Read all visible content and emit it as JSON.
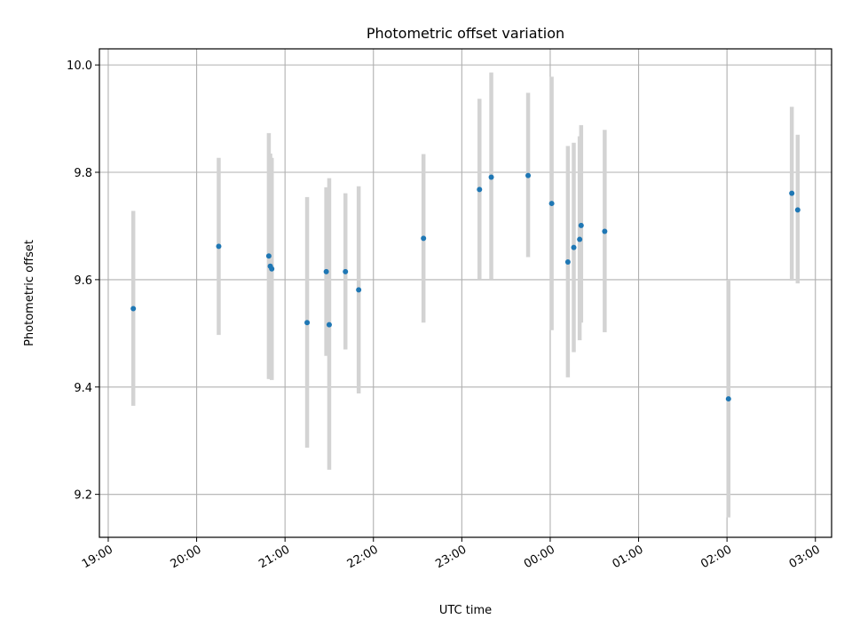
{
  "chart_data": {
    "type": "scatter",
    "title": "Photometric offset variation",
    "xlabel": "UTC time",
    "ylabel": "Photometric offset",
    "x_axis": "time",
    "xlim": [
      "2000-01-01T18:54",
      "2000-01-02T03:11"
    ],
    "ylim": [
      9.12,
      10.03
    ],
    "grid": true,
    "legend": "none",
    "colors": {
      "point": "#1f77b4",
      "errorbar": "#d3d3d3",
      "grid": "#b0b0b0"
    },
    "xticks": [
      "19:00",
      "20:00",
      "21:00",
      "22:00",
      "23:00",
      "00:00",
      "01:00",
      "02:00",
      "03:00"
    ],
    "yticks": [
      "9.2",
      "9.4",
      "9.6",
      "9.8",
      "10.0"
    ],
    "series": [
      {
        "points": [
          {
            "time": "19:17",
            "y": 9.546,
            "ylow": 9.365,
            "yhigh": 9.728
          },
          {
            "time": "20:15",
            "y": 9.662,
            "ylow": 9.497,
            "yhigh": 9.827
          },
          {
            "time": "20:49",
            "y": 9.644,
            "ylow": 9.415,
            "yhigh": 9.873
          },
          {
            "time": "20:50",
            "y": 9.625,
            "ylow": 9.415,
            "yhigh": 9.835
          },
          {
            "time": "20:51",
            "y": 9.62,
            "ylow": 9.413,
            "yhigh": 9.827
          },
          {
            "time": "21:15",
            "y": 9.52,
            "ylow": 9.287,
            "yhigh": 9.754
          },
          {
            "time": "21:28",
            "y": 9.615,
            "ylow": 9.458,
            "yhigh": 9.772
          },
          {
            "time": "21:30",
            "y": 9.516,
            "ylow": 9.246,
            "yhigh": 9.789
          },
          {
            "time": "21:41",
            "y": 9.615,
            "ylow": 9.47,
            "yhigh": 9.761
          },
          {
            "time": "21:50",
            "y": 9.581,
            "ylow": 9.388,
            "yhigh": 9.774
          },
          {
            "time": "22:34",
            "y": 9.677,
            "ylow": 9.52,
            "yhigh": 9.834
          },
          {
            "time": "23:12",
            "y": 9.768,
            "ylow": 9.6,
            "yhigh": 9.937
          },
          {
            "time": "23:20",
            "y": 9.791,
            "ylow": 9.6,
            "yhigh": 9.986
          },
          {
            "time": "23:45",
            "y": 9.794,
            "ylow": 9.642,
            "yhigh": 9.948
          },
          {
            "time": "00:01",
            "y": 9.742,
            "ylow": 9.506,
            "yhigh": 9.978
          },
          {
            "time": "00:12",
            "y": 9.633,
            "ylow": 9.418,
            "yhigh": 9.849
          },
          {
            "time": "00:16",
            "y": 9.66,
            "ylow": 9.465,
            "yhigh": 9.855
          },
          {
            "time": "00:20",
            "y": 9.675,
            "ylow": 9.487,
            "yhigh": 9.867
          },
          {
            "time": "00:21",
            "y": 9.701,
            "ylow": 9.52,
            "yhigh": 9.888
          },
          {
            "time": "00:37",
            "y": 9.69,
            "ylow": 9.502,
            "yhigh": 9.879
          },
          {
            "time": "02:01",
            "y": 9.378,
            "ylow": 9.157,
            "yhigh": 9.6
          },
          {
            "time": "02:44",
            "y": 9.761,
            "ylow": 9.598,
            "yhigh": 9.922
          },
          {
            "time": "02:48",
            "y": 9.73,
            "ylow": 9.593,
            "yhigh": 9.87
          }
        ]
      }
    ]
  }
}
